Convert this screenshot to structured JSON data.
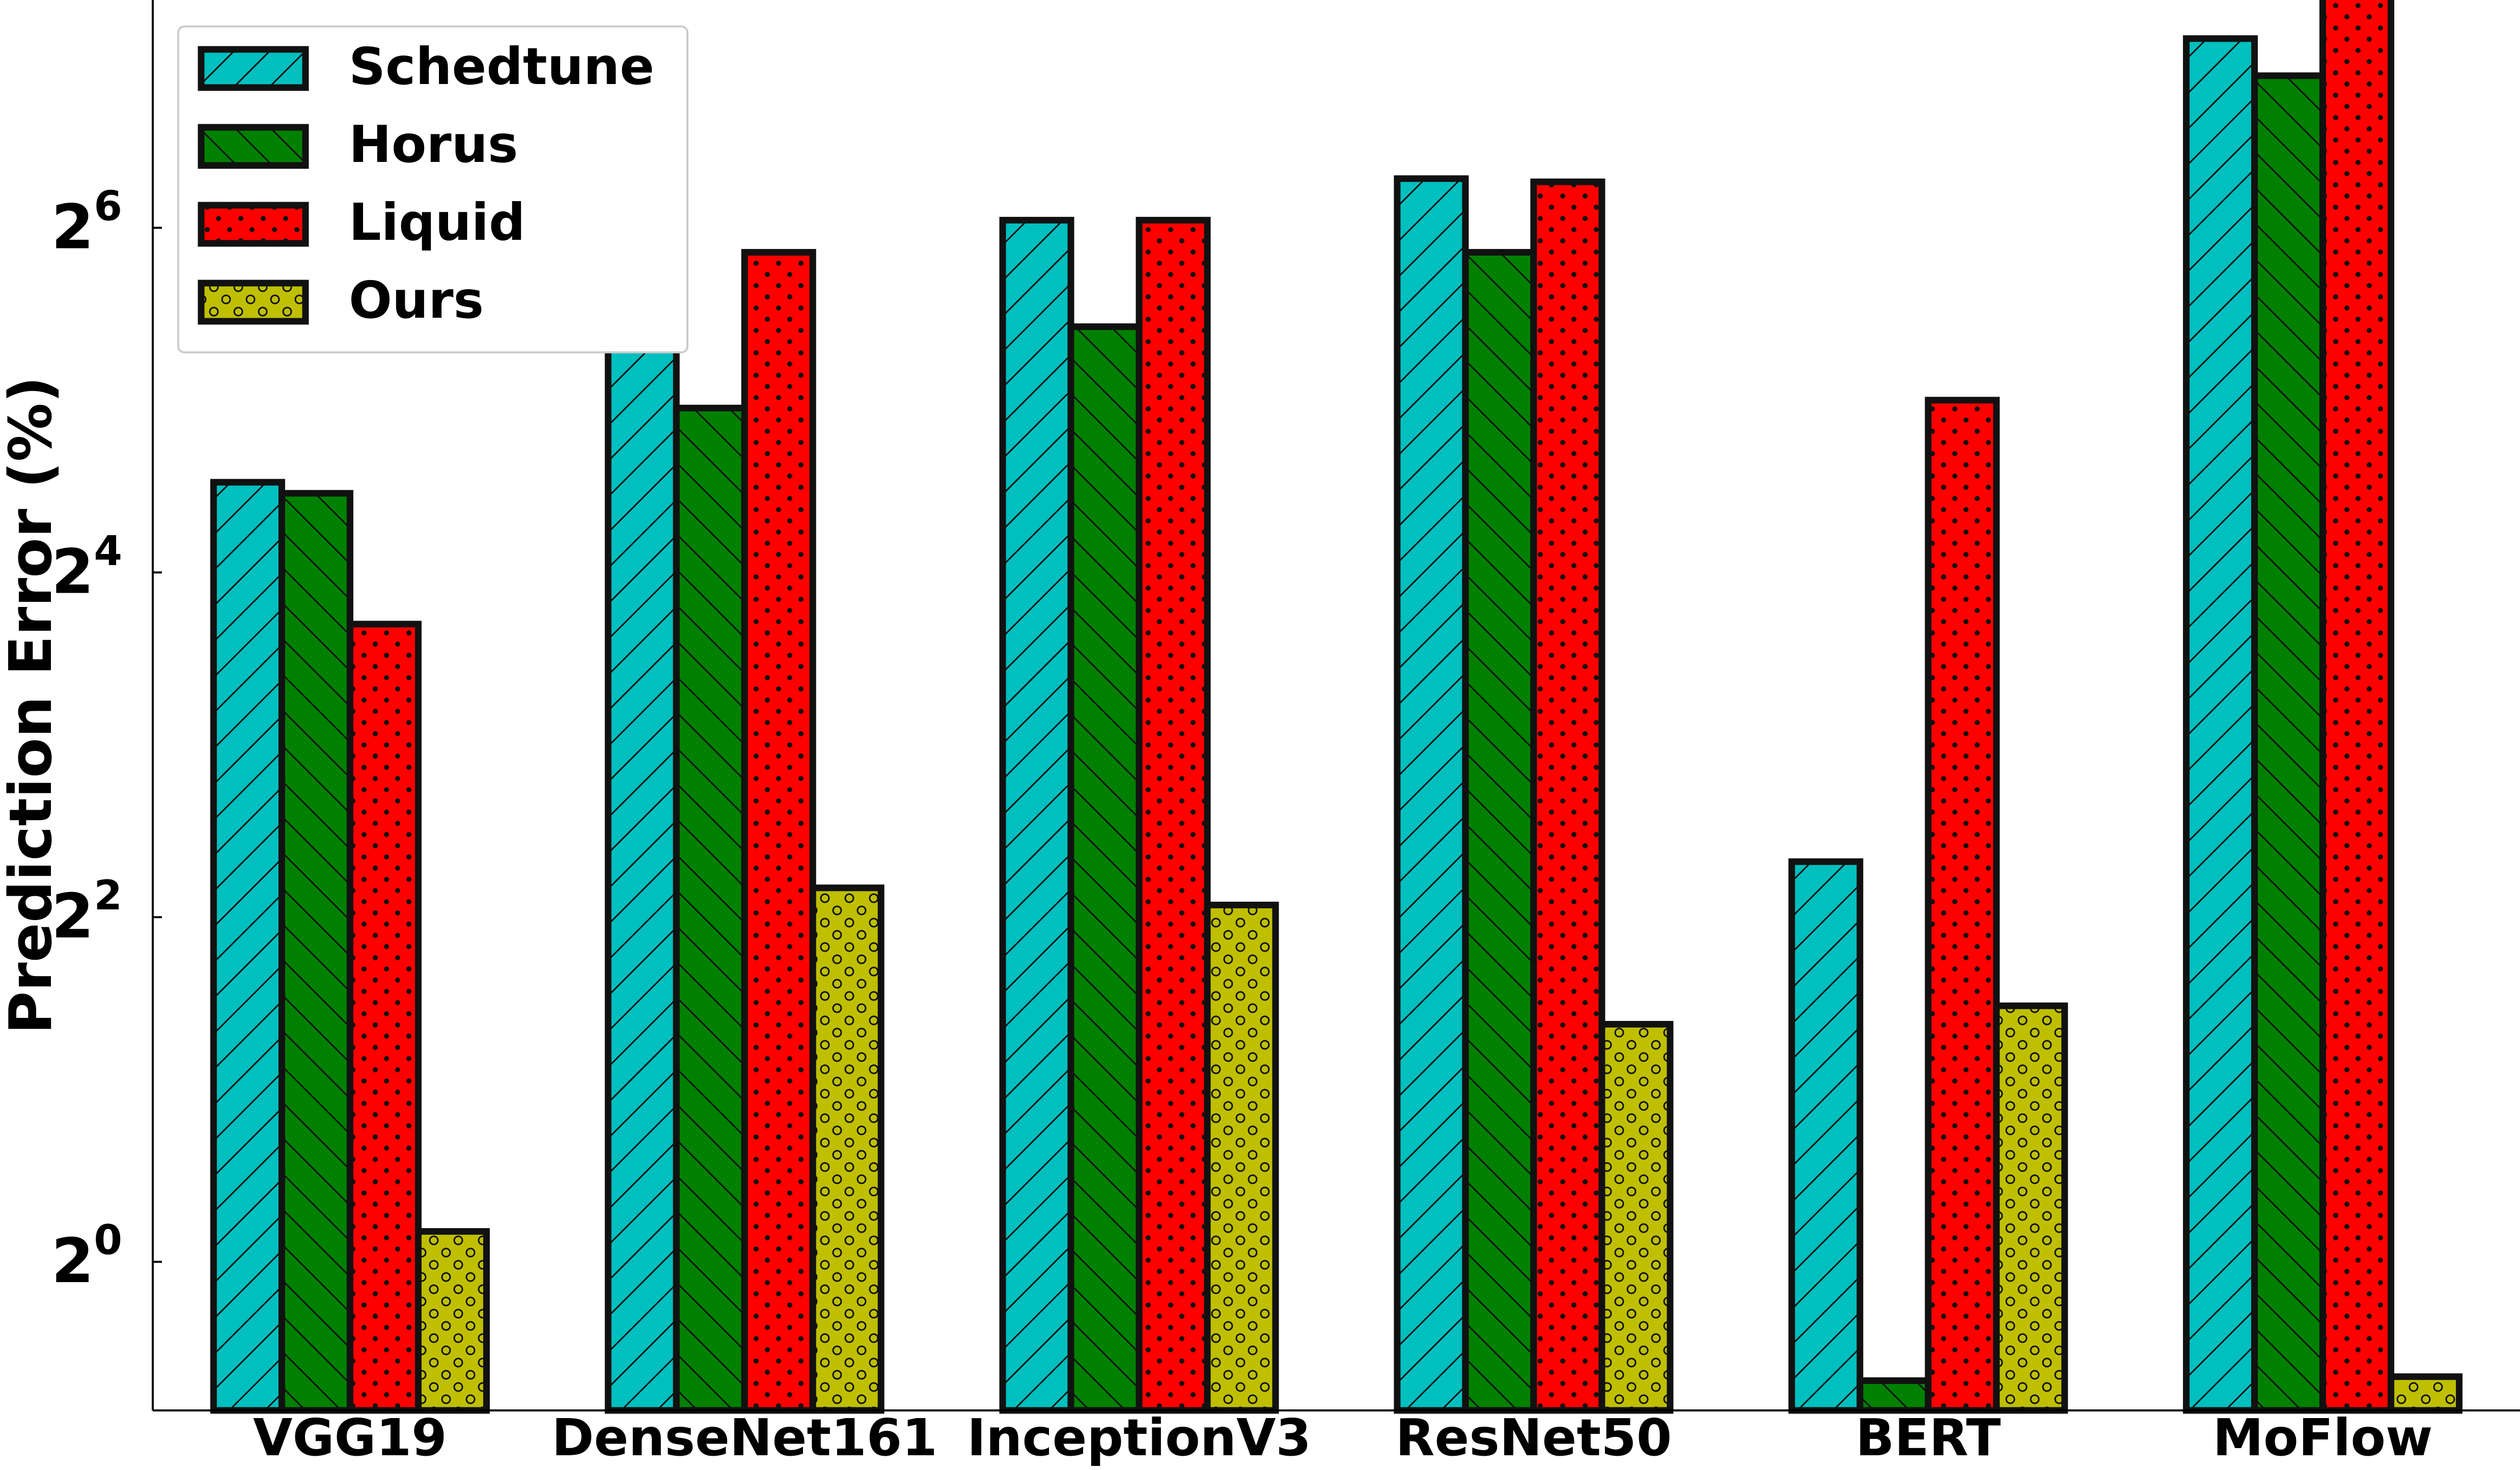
{
  "chart_data": {
    "type": "bar",
    "title": "",
    "ylabel": "Prediction Error (%)",
    "xlabel": "",
    "y_scale": "log2",
    "ylim": [
      0.55,
      160
    ],
    "y_ticks": [
      {
        "value": 1,
        "base": "2",
        "exp": "0"
      },
      {
        "value": 4,
        "base": "2",
        "exp": "2"
      },
      {
        "value": 16,
        "base": "2",
        "exp": "4"
      },
      {
        "value": 64,
        "base": "2",
        "exp": "6"
      }
    ],
    "categories": [
      "VGG19",
      "DenseNet161",
      "InceptionV3",
      "ResNet50",
      "BERT",
      "MoFlow"
    ],
    "series": [
      {
        "name": "Schedtune",
        "color": "#00BFBF",
        "pattern": "diagonal-forward",
        "values": [
          23.0,
          44.0,
          66.0,
          78.0,
          5.0,
          137.0
        ]
      },
      {
        "name": "Horus",
        "color": "#008000",
        "pattern": "diagonal-back",
        "values": [
          22.0,
          31.0,
          43.0,
          58.0,
          0.62,
          118.0
        ]
      },
      {
        "name": "Liquid",
        "color": "#FF0000",
        "pattern": "dots",
        "values": [
          13.0,
          58.0,
          66.0,
          77.0,
          32.0,
          170.0
        ]
      },
      {
        "name": "Ours",
        "color": "#BFBF00",
        "pattern": "circles",
        "values": [
          1.13,
          4.5,
          4.2,
          2.6,
          2.8,
          0.63
        ]
      }
    ],
    "legend_position": "top-left",
    "grid": false
  }
}
